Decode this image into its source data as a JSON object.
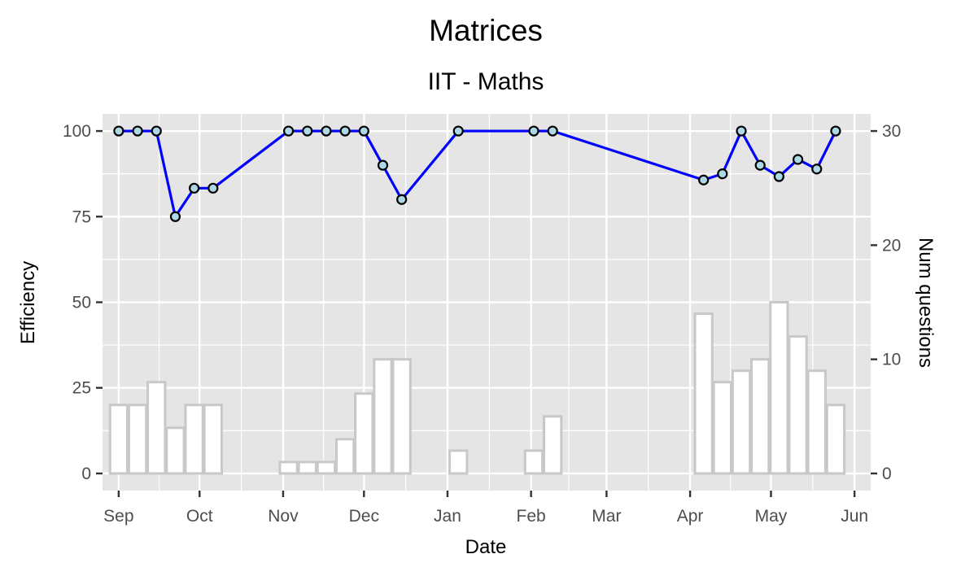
{
  "chart_data": {
    "type": "line+bar",
    "title": "Matrices",
    "subtitle": "IIT - Maths",
    "xlabel": "Date",
    "ylabel": "Efficiency",
    "y2label": "Num questions",
    "x_ticks": [
      "Sep",
      "Oct",
      "Nov",
      "Dec",
      "Jan",
      "Feb",
      "Mar",
      "Apr",
      "May",
      "Jun"
    ],
    "y_ticks": [
      "0",
      "25",
      "50",
      "75",
      "100"
    ],
    "y2_ticks": [
      "0",
      "10",
      "20",
      "30"
    ],
    "ylim": [
      -5,
      105
    ],
    "y2lim": [
      0,
      30
    ],
    "xlim": [
      "2017-08-26",
      "2018-06-07"
    ],
    "colors": {
      "panel": "#e5e5e5",
      "grid": "#ffffff",
      "line": "#0000ff",
      "point_fill": "#add8e6",
      "point_stroke": "#000000",
      "bar_fill": "#ffffff",
      "bar_stroke": "#c8c8c8"
    },
    "series": [
      {
        "type": "line",
        "axis": "left",
        "x": [
          "2017-09-01",
          "2017-09-08",
          "2017-09-15",
          "2017-09-22",
          "2017-09-29",
          "2017-10-06",
          "2017-11-03",
          "2017-11-10",
          "2017-11-17",
          "2017-11-24",
          "2017-12-01",
          "2017-12-08",
          "2017-12-15",
          "2018-01-05",
          "2018-02-02",
          "2018-02-09",
          "2018-04-06",
          "2018-04-13",
          "2018-04-20",
          "2018-04-27",
          "2018-05-04",
          "2018-05-11",
          "2018-05-18",
          "2018-05-25"
        ],
        "values": [
          100,
          100,
          100,
          75,
          83.3,
          83.3,
          100,
          100,
          100,
          100,
          100,
          90,
          80,
          100,
          100,
          100,
          85.7,
          87.5,
          100,
          90,
          86.7,
          91.7,
          88.9,
          100
        ]
      },
      {
        "type": "bar",
        "axis": "right",
        "x": [
          "2017-09-01",
          "2017-09-08",
          "2017-09-15",
          "2017-09-22",
          "2017-09-29",
          "2017-10-06",
          "2017-11-03",
          "2017-11-10",
          "2017-11-17",
          "2017-11-24",
          "2017-12-01",
          "2017-12-08",
          "2017-12-15",
          "2018-01-05",
          "2018-02-02",
          "2018-02-09",
          "2018-04-06",
          "2018-04-13",
          "2018-04-20",
          "2018-04-27",
          "2018-05-04",
          "2018-05-11",
          "2018-05-18",
          "2018-05-25"
        ],
        "values": [
          6,
          6,
          8,
          4,
          6,
          6,
          1,
          1,
          1,
          3,
          7,
          10,
          10,
          2,
          2,
          5,
          14,
          8,
          9,
          10,
          15,
          12,
          9,
          6
        ]
      }
    ]
  }
}
